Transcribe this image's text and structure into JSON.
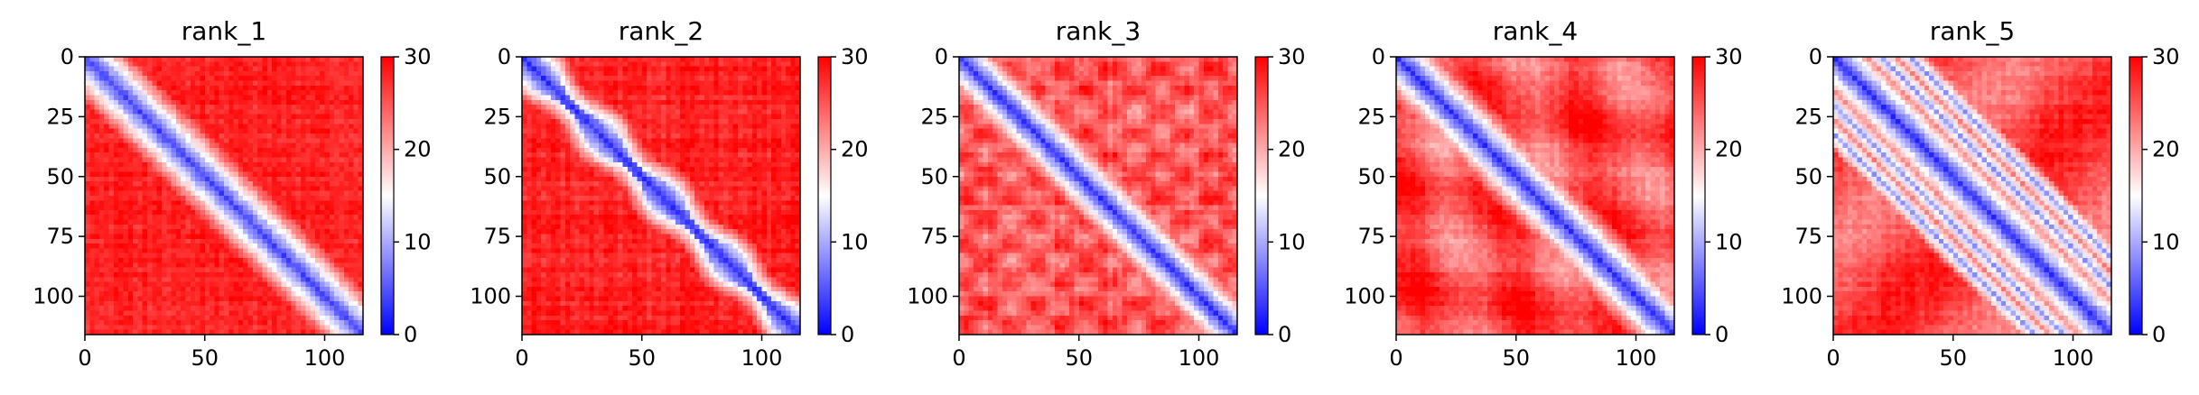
{
  "chart_data": [
    {
      "type": "heatmap",
      "title": "rank_1",
      "size": 116,
      "x_ticks": [
        0,
        50,
        100
      ],
      "y_ticks": [
        0,
        25,
        50,
        75,
        100
      ],
      "colorbar": {
        "min": 0,
        "max": 30,
        "ticks": [
          0,
          10,
          20,
          30
        ],
        "colormap": [
          "#0000ff",
          "#ffffff",
          "#ff0000"
        ]
      },
      "description": "blue band along main diagonal"
    },
    {
      "type": "heatmap",
      "title": "rank_2",
      "size": 116,
      "x_ticks": [
        0,
        50,
        100
      ],
      "y_ticks": [
        0,
        25,
        50,
        75,
        100
      ],
      "colorbar": {
        "min": 0,
        "max": 30,
        "ticks": [
          0,
          10,
          20,
          30
        ],
        "colormap": [
          "#0000ff",
          "#ffffff",
          "#ff0000"
        ]
      },
      "description": "wider blue band along main diagonal"
    },
    {
      "type": "heatmap",
      "title": "rank_3",
      "size": 116,
      "x_ticks": [
        0,
        50,
        100
      ],
      "y_ticks": [
        0,
        25,
        50,
        75,
        100
      ],
      "colorbar": {
        "min": 0,
        "max": 30,
        "ticks": [
          0,
          10,
          20,
          30
        ],
        "colormap": [
          "#0000ff",
          "#ffffff",
          "#ff0000"
        ]
      },
      "description": "blue diagonal with lighter off-diagonal texture"
    },
    {
      "type": "heatmap",
      "title": "rank_4",
      "size": 116,
      "x_ticks": [
        0,
        50,
        100
      ],
      "y_ticks": [
        0,
        25,
        50,
        75,
        100
      ],
      "colorbar": {
        "min": 0,
        "max": 30,
        "ticks": [
          0,
          10,
          20,
          30
        ],
        "colormap": [
          "#0000ff",
          "#ffffff",
          "#ff0000"
        ]
      },
      "description": "blue diagonal with lighter blotches"
    },
    {
      "type": "heatmap",
      "title": "rank_5",
      "size": 116,
      "x_ticks": [
        0,
        50,
        100
      ],
      "y_ticks": [
        0,
        25,
        50,
        75,
        100
      ],
      "colorbar": {
        "min": 0,
        "max": 30,
        "ticks": [
          0,
          10,
          20,
          30
        ],
        "colormap": [
          "#0000ff",
          "#ffffff",
          "#ff0000"
        ]
      },
      "description": "blue diagonal plus two parallel off-diagonal contact bands"
    }
  ]
}
